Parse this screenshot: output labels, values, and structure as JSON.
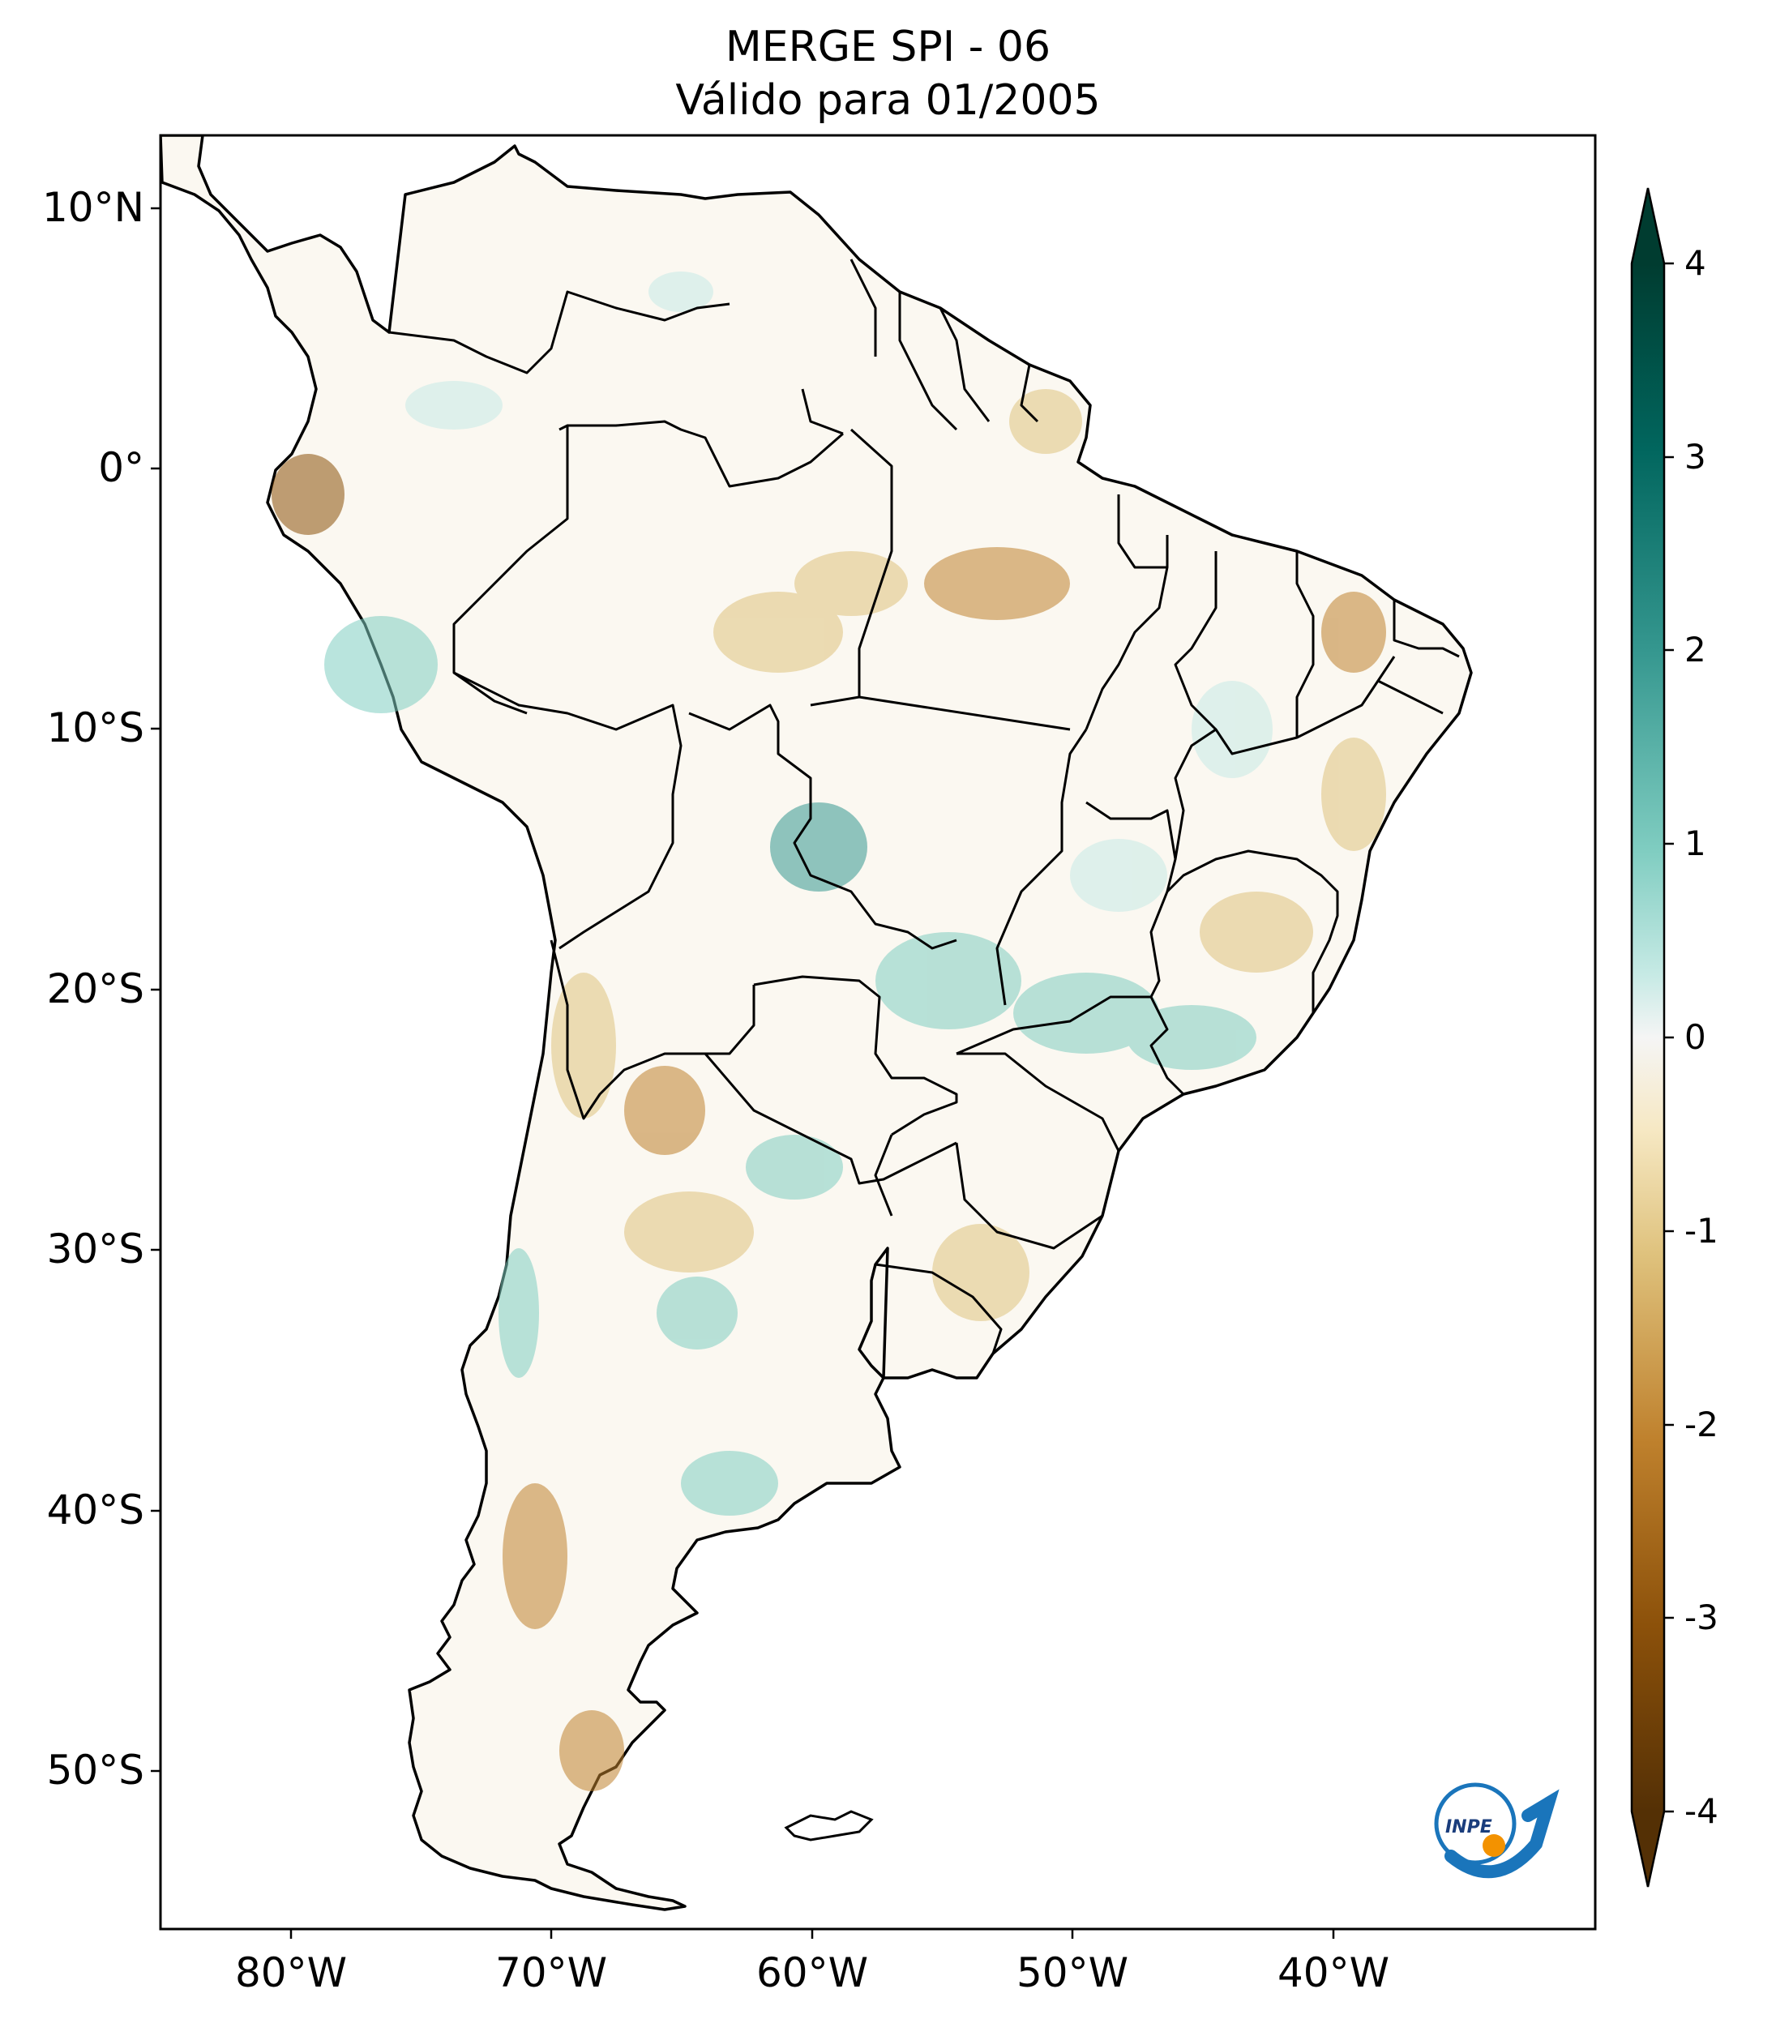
{
  "header": {
    "title": "MERGE   SPI - 06",
    "subtitle": "Válido para 01/2005"
  },
  "map": {
    "lat_labels": [
      "10°N",
      "0°",
      "10°S",
      "20°S",
      "30°S",
      "40°S",
      "50°S"
    ],
    "lon_labels": [
      "80°W",
      "70°W",
      "60°W",
      "50°W",
      "40°W"
    ],
    "extent": {
      "lon": [
        -85,
        -30
      ],
      "lat": [
        -56,
        13
      ]
    }
  },
  "colorbar": {
    "ticks": [
      "4",
      "3",
      "2",
      "1",
      "0",
      "-1",
      "-2",
      "-3",
      "-4"
    ],
    "range": [
      -4,
      4
    ],
    "colors": {
      "max": "#003c30",
      "positive": "#35978f",
      "light_positive": "#c7eae5",
      "neutral": "#f5f5f5",
      "light_negative": "#f6e8c3",
      "negative": "#bf812d",
      "min": "#543005"
    }
  },
  "logo": {
    "text": "INPE"
  }
}
